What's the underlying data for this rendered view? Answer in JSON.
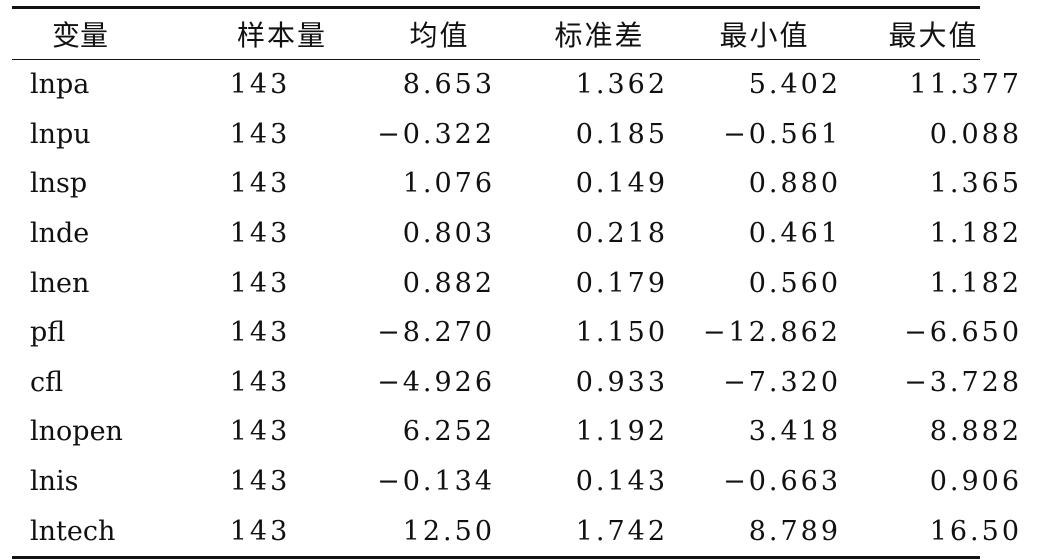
{
  "table": {
    "headers": [
      "变量",
      "样本量",
      "均值",
      "标准差",
      "最小值",
      "最大值"
    ],
    "rows": [
      [
        "lnpa",
        "143",
        "8.653",
        "1.362",
        "5.402",
        "11.377"
      ],
      [
        "lnpu",
        "143",
        "−0.322",
        "0.185",
        "−0.561",
        "0.088"
      ],
      [
        "lnsp",
        "143",
        "1.076",
        "0.149",
        "0.880",
        "1.365"
      ],
      [
        "lnde",
        "143",
        "0.803",
        "0.218",
        "0.461",
        "1.182"
      ],
      [
        "lnen",
        "143",
        "0.882",
        "0.179",
        "0.560",
        "1.182"
      ],
      [
        "pfl",
        "143",
        "−8.270",
        "1.150",
        "−12.862",
        "−6.650"
      ],
      [
        "cfl",
        "143",
        "−4.926",
        "0.933",
        "−7.320",
        "−3.728"
      ],
      [
        "lnopen",
        "143",
        "6.252",
        "1.192",
        "3.418",
        "8.882"
      ],
      [
        "lnis",
        "143",
        "−0.134",
        "0.143",
        "−0.663",
        "0.906"
      ],
      [
        "lntech",
        "143",
        "12.50",
        "1.742",
        "8.789",
        "16.50"
      ]
    ]
  }
}
